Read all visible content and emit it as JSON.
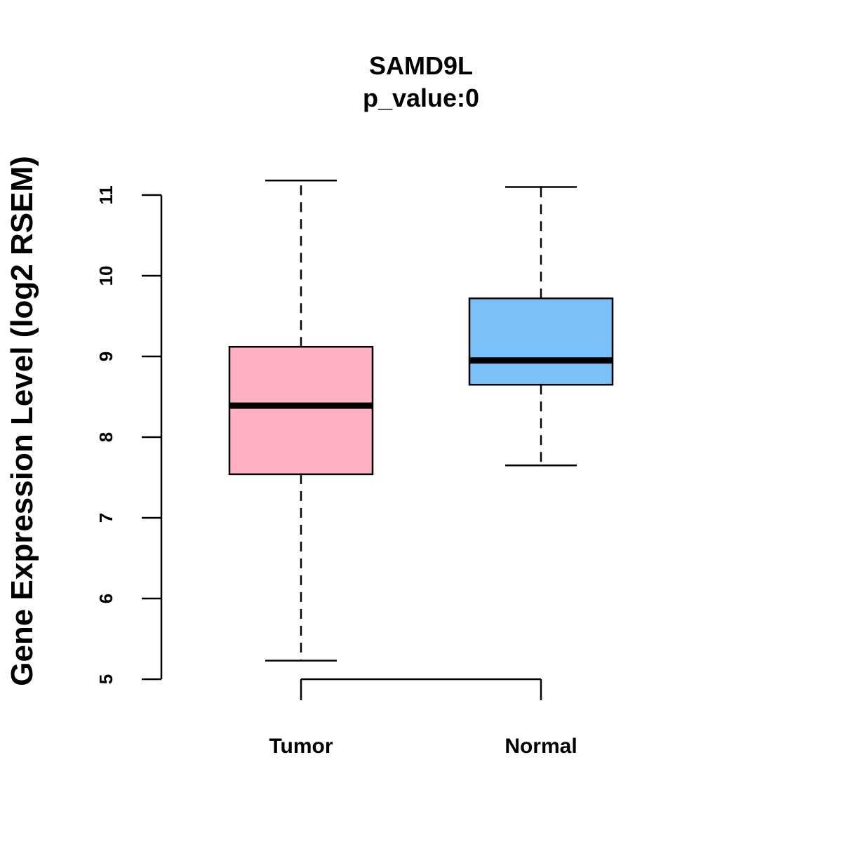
{
  "chart_data": {
    "type": "boxplot",
    "title": "SAMD9L",
    "subtitle": "p_value:0",
    "ylabel": "Gene Expression Level (log2 RSEM)",
    "xlabel": "",
    "ylim": [
      5,
      11
    ],
    "yticks": [
      5,
      6,
      7,
      8,
      9,
      10,
      11
    ],
    "categories": [
      "Tumor",
      "Normal"
    ],
    "boxes": [
      {
        "name": "Tumor",
        "whisker_low": 5.23,
        "q1": 7.54,
        "median": 8.39,
        "q3": 9.12,
        "whisker_high": 11.18,
        "color": "#FFB0C2"
      },
      {
        "name": "Normal",
        "whisker_low": 7.65,
        "q1": 8.65,
        "median": 8.95,
        "q3": 9.72,
        "whisker_high": 11.1,
        "color": "#79C1F8"
      }
    ]
  }
}
